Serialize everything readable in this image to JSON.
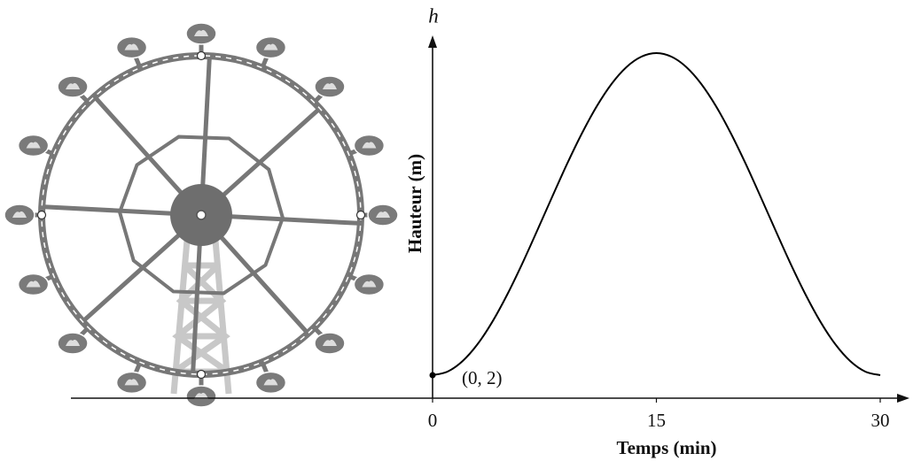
{
  "chart_data": {
    "type": "line",
    "y_axis_symbol": "h",
    "ylabel": "Hauteur (m)",
    "xlabel": "Temps (min)",
    "annotation": "(0, 2)",
    "x": [
      0,
      1,
      2,
      3,
      4,
      5,
      6,
      7,
      8,
      9,
      10,
      11,
      12,
      13,
      14,
      15,
      16,
      17,
      18,
      19,
      20,
      21,
      22,
      23,
      24,
      25,
      26,
      27,
      28,
      29,
      30
    ],
    "series": [
      {
        "color": "#000000",
        "values": [
          2,
          2.31,
          3.21,
          4.67,
          6.63,
          9,
          11.67,
          14.54,
          17.46,
          20.33,
          23,
          25.37,
          27.33,
          28.79,
          29.69,
          30,
          29.69,
          28.79,
          27.33,
          25.37,
          23,
          20.33,
          17.46,
          14.54,
          11.67,
          9,
          6.63,
          4.67,
          3.21,
          2.31,
          2
        ]
      }
    ],
    "xlim": [
      0,
      30
    ],
    "ylim": [
      0,
      33
    ],
    "xticks": [
      0,
      15,
      30
    ]
  }
}
